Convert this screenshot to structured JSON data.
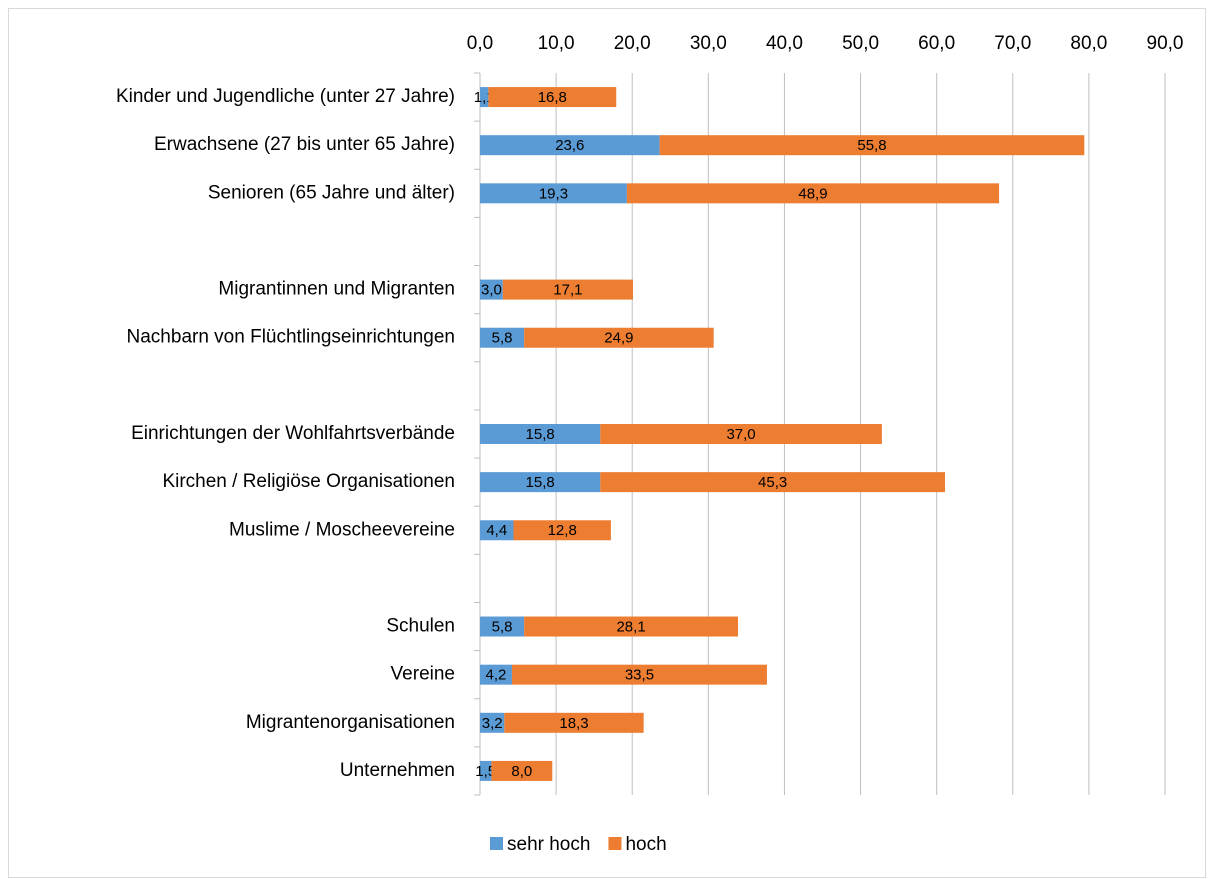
{
  "chart_data": {
    "type": "stacked_barh",
    "categories": [
      "Kinder und Jugendliche (unter 27 Jahre)",
      "Erwachsene (27 bis unter 65 Jahre)",
      "Senioren (65 Jahre und älter)",
      null,
      "Migrantinnen und Migranten",
      "Nachbarn von Flüchtlingseinrichtungen",
      null,
      "Einrichtungen der Wohlfahrtsverbände",
      "Kirchen / Religiöse Organisationen",
      "Muslime / Moscheevereine",
      null,
      "Schulen",
      "Vereine",
      "Migrantenorganisationen",
      "Unternehmen"
    ],
    "series": [
      {
        "name": "sehr hoch",
        "color": "#5b9bd5",
        "values": [
          1.1,
          23.6,
          19.3,
          null,
          3.0,
          5.8,
          null,
          15.8,
          15.8,
          4.4,
          null,
          5.8,
          4.2,
          3.2,
          1.5
        ],
        "value_labels": [
          "1,1",
          "23,6",
          "19,3",
          null,
          "3,0",
          "5,8",
          null,
          "15,8",
          "15,8",
          "4,4",
          null,
          "5,8",
          "4,2",
          "3,2",
          "1,5"
        ]
      },
      {
        "name": "hoch",
        "color": "#ed7d31",
        "values": [
          16.8,
          55.8,
          48.9,
          null,
          17.1,
          24.9,
          null,
          37.0,
          45.3,
          12.8,
          null,
          28.1,
          33.5,
          18.3,
          8.0
        ],
        "value_labels": [
          "16,8",
          "55,8",
          "48,9",
          null,
          "17,1",
          "24,9",
          null,
          "37,0",
          "45,3",
          "12,8",
          null,
          "28,1",
          "33,5",
          "18,3",
          "8,0"
        ]
      }
    ],
    "xlim": [
      0,
      90
    ],
    "xticks": [
      {
        "value": 0,
        "label": "0,0"
      },
      {
        "value": 10,
        "label": "10,0"
      },
      {
        "value": 20,
        "label": "20,0"
      },
      {
        "value": 30,
        "label": "30,0"
      },
      {
        "value": 40,
        "label": "40,0"
      },
      {
        "value": 50,
        "label": "50,0"
      },
      {
        "value": 60,
        "label": "60,0"
      },
      {
        "value": 70,
        "label": "70,0"
      },
      {
        "value": 80,
        "label": "80,0"
      },
      {
        "value": 90,
        "label": "90,0"
      }
    ],
    "grid": true,
    "legend": "bottom"
  }
}
